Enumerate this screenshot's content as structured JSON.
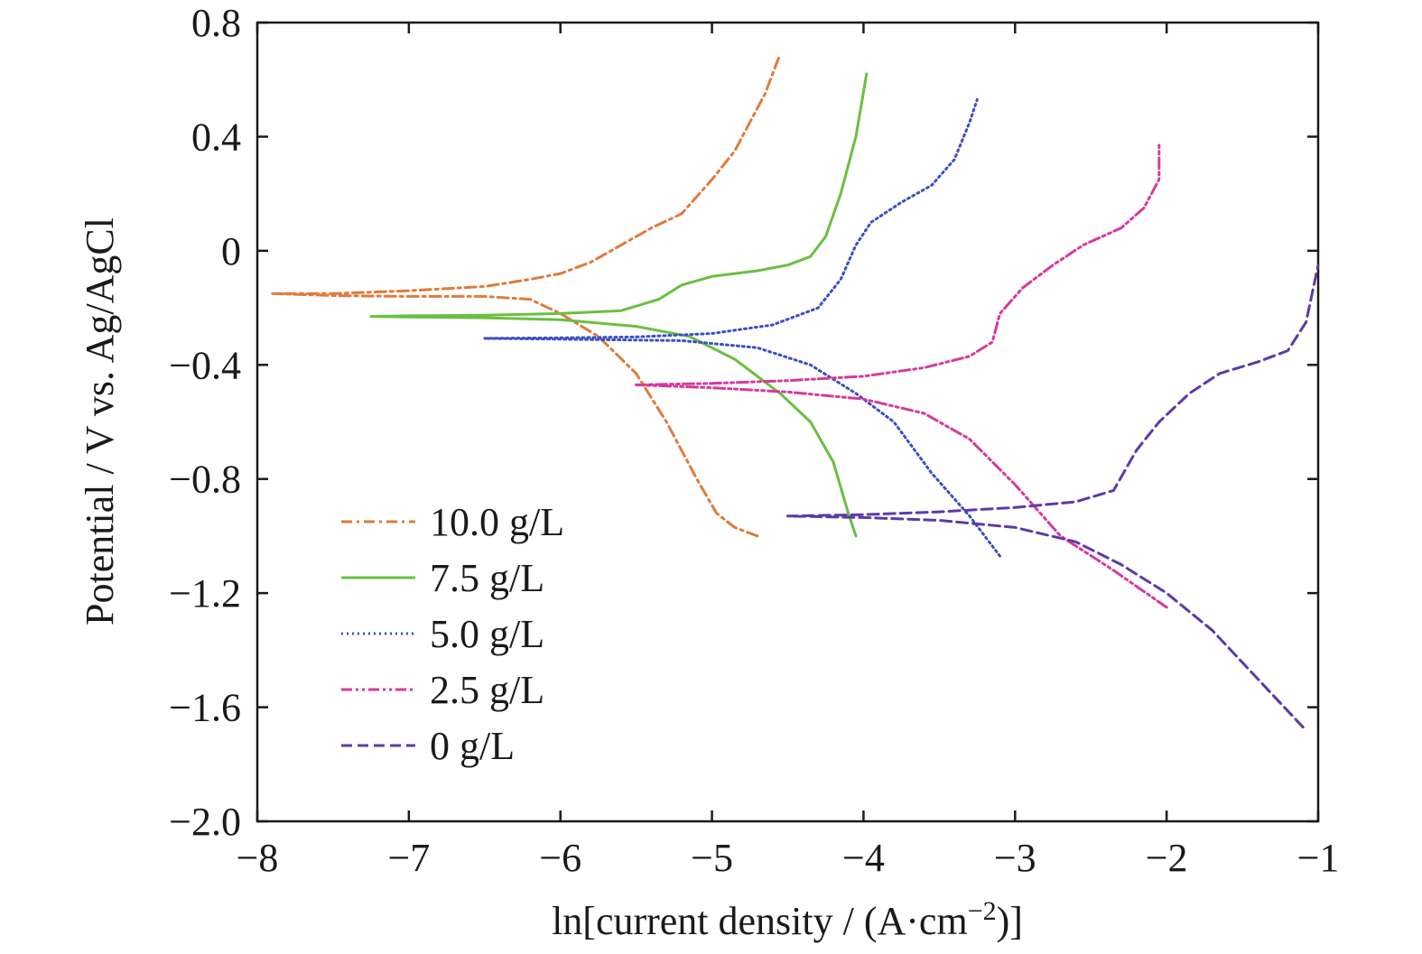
{
  "chart_data": {
    "type": "line",
    "xlabel": "ln[current density / (A·cm",
    "xlabel_sup": "−2",
    "xlabel_end": ")]",
    "ylabel": "Potential / V vs. Ag/AgCl",
    "xlim": [
      -8,
      -1
    ],
    "ylim": [
      -2.0,
      0.8
    ],
    "x_ticks": [
      "−8",
      "−7",
      "−6",
      "−5",
      "−4",
      "−3",
      "−2",
      "−1"
    ],
    "y_ticks": [
      "−2.0",
      "−1.6",
      "−1.2",
      "−0.8",
      "−0.4",
      "0",
      "0.4",
      "0.8"
    ],
    "grid": false,
    "legend_position": "bottom-left",
    "series": [
      {
        "name": "10.0 g/L",
        "color": "#e07b39",
        "dash": "dashdot",
        "points": [
          [
            -4.7,
            -1.0
          ],
          [
            -4.85,
            -0.97
          ],
          [
            -4.97,
            -0.92
          ],
          [
            -5.1,
            -0.8
          ],
          [
            -5.3,
            -0.6
          ],
          [
            -5.5,
            -0.43
          ],
          [
            -5.75,
            -0.3
          ],
          [
            -6.0,
            -0.22
          ],
          [
            -6.2,
            -0.17
          ],
          [
            -6.5,
            -0.16
          ],
          [
            -7.0,
            -0.16
          ],
          [
            -7.5,
            -0.157
          ],
          [
            -7.9,
            -0.15
          ],
          [
            -7.5,
            -0.15
          ],
          [
            -7.0,
            -0.14
          ],
          [
            -6.5,
            -0.125
          ],
          [
            -6.2,
            -0.1
          ],
          [
            -6.0,
            -0.08
          ],
          [
            -5.8,
            -0.04
          ],
          [
            -5.6,
            0.02
          ],
          [
            -5.4,
            0.08
          ],
          [
            -5.2,
            0.13
          ],
          [
            -5.0,
            0.25
          ],
          [
            -4.85,
            0.35
          ],
          [
            -4.75,
            0.45
          ],
          [
            -4.65,
            0.55
          ],
          [
            -4.55,
            0.69
          ]
        ]
      },
      {
        "name": "7.5 g/L",
        "color": "#6abf40",
        "dash": "solid",
        "points": [
          [
            -4.05,
            -1.0
          ],
          [
            -4.1,
            -0.92
          ],
          [
            -4.2,
            -0.74
          ],
          [
            -4.35,
            -0.6
          ],
          [
            -4.55,
            -0.5
          ],
          [
            -4.85,
            -0.38
          ],
          [
            -5.15,
            -0.3
          ],
          [
            -5.5,
            -0.265
          ],
          [
            -6.0,
            -0.242
          ],
          [
            -6.5,
            -0.235
          ],
          [
            -7.0,
            -0.232
          ],
          [
            -7.25,
            -0.23
          ],
          [
            -7.0,
            -0.228
          ],
          [
            -6.5,
            -0.226
          ],
          [
            -6.0,
            -0.22
          ],
          [
            -5.6,
            -0.21
          ],
          [
            -5.35,
            -0.17
          ],
          [
            -5.2,
            -0.12
          ],
          [
            -5.0,
            -0.09
          ],
          [
            -4.7,
            -0.07
          ],
          [
            -4.5,
            -0.05
          ],
          [
            -4.35,
            -0.02
          ],
          [
            -4.25,
            0.05
          ],
          [
            -4.15,
            0.2
          ],
          [
            -4.05,
            0.4
          ],
          [
            -3.98,
            0.62
          ]
        ]
      },
      {
        "name": "5.0 g/L",
        "color": "#3b4fc4",
        "dash": "dotted",
        "points": [
          [
            -3.1,
            -1.07
          ],
          [
            -3.3,
            -0.93
          ],
          [
            -3.55,
            -0.78
          ],
          [
            -3.8,
            -0.6
          ],
          [
            -4.05,
            -0.5
          ],
          [
            -4.35,
            -0.4
          ],
          [
            -4.7,
            -0.34
          ],
          [
            -5.2,
            -0.315
          ],
          [
            -6.0,
            -0.31
          ],
          [
            -6.5,
            -0.307
          ],
          [
            -6.0,
            -0.305
          ],
          [
            -5.5,
            -0.302
          ],
          [
            -5.0,
            -0.29
          ],
          [
            -4.6,
            -0.26
          ],
          [
            -4.3,
            -0.2
          ],
          [
            -4.15,
            -0.1
          ],
          [
            -4.05,
            0.02
          ],
          [
            -3.95,
            0.1
          ],
          [
            -3.75,
            0.17
          ],
          [
            -3.55,
            0.23
          ],
          [
            -3.4,
            0.32
          ],
          [
            -3.3,
            0.45
          ],
          [
            -3.25,
            0.53
          ]
        ]
      },
      {
        "name": "2.5 g/L",
        "color": "#d63a9c",
        "dash": "dashdotdot",
        "points": [
          [
            -2.0,
            -1.25
          ],
          [
            -2.35,
            -1.12
          ],
          [
            -2.7,
            -1.0
          ],
          [
            -3.0,
            -0.82
          ],
          [
            -3.3,
            -0.66
          ],
          [
            -3.6,
            -0.57
          ],
          [
            -4.0,
            -0.52
          ],
          [
            -4.5,
            -0.495
          ],
          [
            -5.0,
            -0.48
          ],
          [
            -5.5,
            -0.47
          ],
          [
            -5.0,
            -0.465
          ],
          [
            -4.5,
            -0.455
          ],
          [
            -4.0,
            -0.44
          ],
          [
            -3.6,
            -0.41
          ],
          [
            -3.3,
            -0.37
          ],
          [
            -3.15,
            -0.32
          ],
          [
            -3.1,
            -0.22
          ],
          [
            -2.95,
            -0.13
          ],
          [
            -2.75,
            -0.05
          ],
          [
            -2.55,
            0.02
          ],
          [
            -2.3,
            0.08
          ],
          [
            -2.15,
            0.15
          ],
          [
            -2.05,
            0.25
          ],
          [
            -2.05,
            0.37
          ]
        ]
      },
      {
        "name": "0 g/L",
        "color": "#5c3aa8",
        "dash": "dashed",
        "points": [
          [
            -1.1,
            -1.67
          ],
          [
            -1.4,
            -1.5
          ],
          [
            -1.7,
            -1.33
          ],
          [
            -2.0,
            -1.2
          ],
          [
            -2.3,
            -1.1
          ],
          [
            -2.6,
            -1.02
          ],
          [
            -3.0,
            -0.97
          ],
          [
            -3.5,
            -0.945
          ],
          [
            -4.0,
            -0.935
          ],
          [
            -4.5,
            -0.93
          ],
          [
            -4.0,
            -0.925
          ],
          [
            -3.5,
            -0.915
          ],
          [
            -3.0,
            -0.9
          ],
          [
            -2.6,
            -0.88
          ],
          [
            -2.35,
            -0.84
          ],
          [
            -2.2,
            -0.7
          ],
          [
            -2.05,
            -0.6
          ],
          [
            -1.85,
            -0.5
          ],
          [
            -1.65,
            -0.43
          ],
          [
            -1.4,
            -0.39
          ],
          [
            -1.2,
            -0.35
          ],
          [
            -1.08,
            -0.25
          ],
          [
            -1.02,
            -0.1
          ],
          [
            -1.0,
            -0.05
          ]
        ]
      }
    ]
  }
}
